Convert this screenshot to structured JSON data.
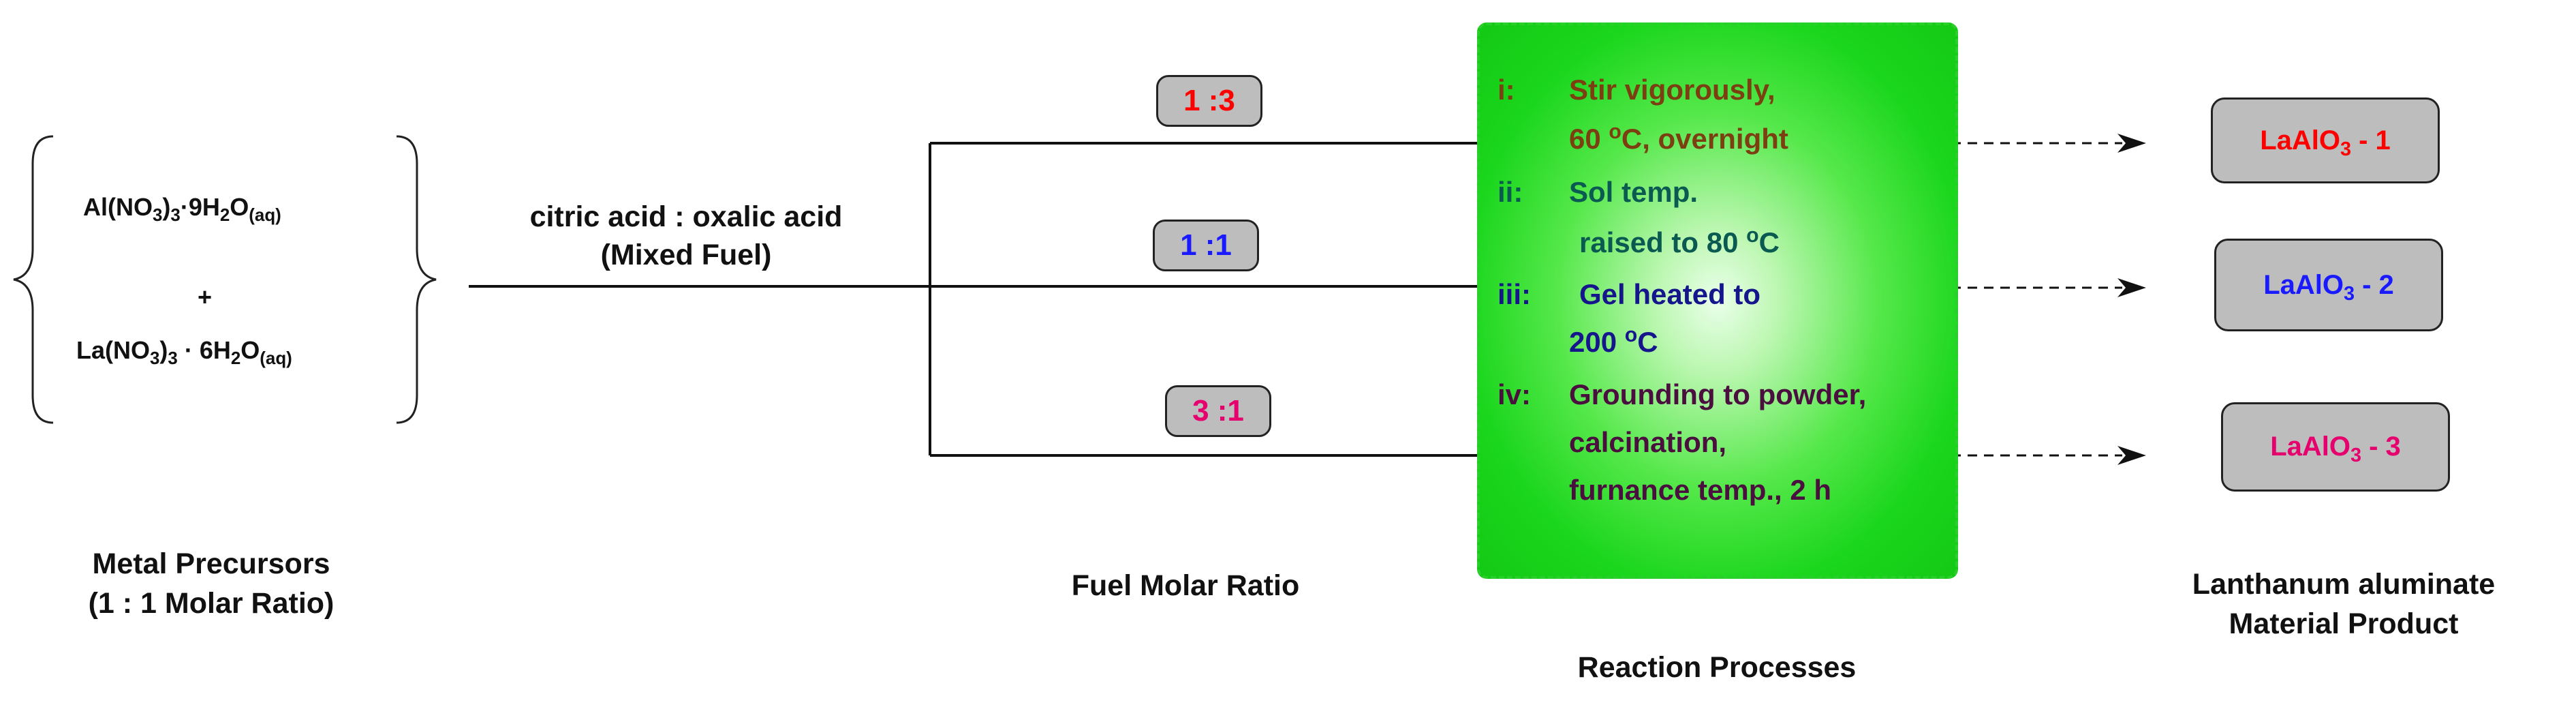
{
  "precursors": {
    "al_nitrate": {
      "main": "Al(NO",
      "sub1": "3",
      "mid": ")",
      "sub2": "3",
      "rest": "·9H",
      "sub3": "2",
      "end": "O",
      "sub4": "(aq)"
    },
    "plus": "+",
    "la_nitrate": {
      "main": "La(NO",
      "sub1": "3",
      "mid": ")",
      "sub2": "3",
      "rest": " · 6H",
      "sub3": "2",
      "end": "O",
      "sub4": "(aq)"
    },
    "caption_line1": "Metal Precursors",
    "caption_line2": "(1 : 1 Molar Ratio)"
  },
  "fuel": {
    "label_line1": "citric acid : oxalic acid",
    "label_line2": "(Mixed Fuel)",
    "caption": "Fuel Molar Ratio",
    "ratios": [
      {
        "label": "1 :3",
        "color": "#ff0000"
      },
      {
        "label": "1 :1",
        "color": "#1a1aff"
      },
      {
        "label": "3 :1",
        "color": "#e6006e"
      }
    ]
  },
  "process": {
    "caption": "Reaction Processes",
    "steps": [
      {
        "num": "i:",
        "color": "#7b3f12",
        "line1": "Stir vigorously,",
        "line2_pre": "60 ",
        "line2_sup": "o",
        "line2_post": "C, overnight"
      },
      {
        "num": "ii:",
        "color": "#0b5a52",
        "line1": "Sol temp.",
        "line2_pre": "raised to 80 ",
        "line2_sup": "o",
        "line2_post": "C"
      },
      {
        "num": "iii:",
        "color": "#16168c",
        "line1": "Gel heated to",
        "line2_pre": "200 ",
        "line2_sup": "o",
        "line2_post": "C"
      },
      {
        "num": "iv:",
        "color": "#4a0f3e",
        "line1": "Grounding to powder,",
        "line2": "calcination,",
        "line3": "furnance temp., 2 h"
      }
    ]
  },
  "products": {
    "caption_line1": "Lanthanum aluminate",
    "caption_line2": "Material Product",
    "items": [
      {
        "pre": "LaAlO",
        "sub": "3",
        "post": " - 1",
        "color": "#ff0000"
      },
      {
        "pre": "LaAlO",
        "sub": "3",
        "post": " - 2",
        "color": "#1a1aff"
      },
      {
        "pre": "LaAlO",
        "sub": "3",
        "post": " - 3",
        "color": "#e6006e"
      }
    ]
  }
}
